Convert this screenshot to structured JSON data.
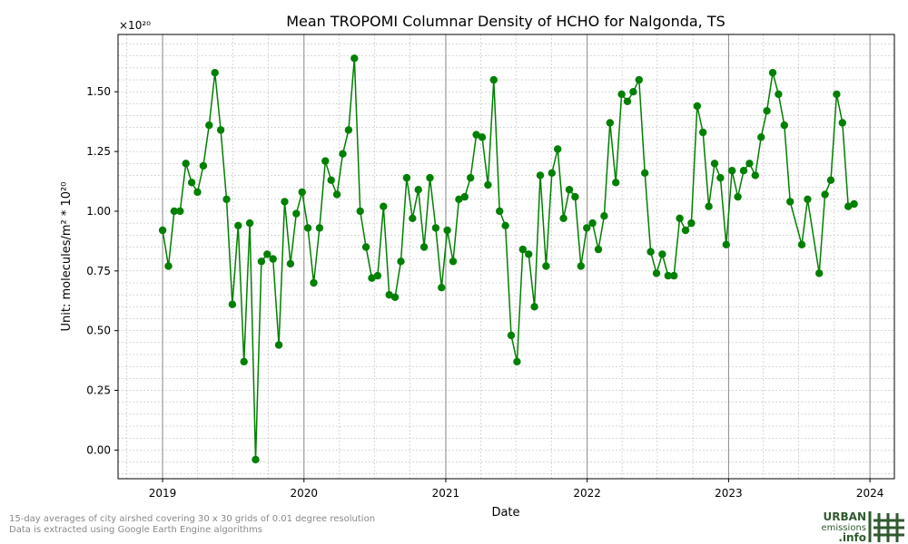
{
  "chart_data": {
    "type": "line",
    "title": "Mean TROPOMI Columnar Density of HCHO for Nalgonda, TS",
    "xlabel": "Date",
    "ylabel": "Unit: molecules/m² * 10²⁰",
    "y_multiplier_label": "×10²⁰",
    "xlim": [
      "2018-09-08",
      "2024-03-04"
    ],
    "ylim": [
      -0.12,
      1.74
    ],
    "x_ticks": [
      "2019",
      "2020",
      "2021",
      "2022",
      "2023",
      "2024"
    ],
    "y_ticks": [
      "0.00",
      "0.25",
      "0.50",
      "0.75",
      "1.00",
      "1.25",
      "1.50"
    ],
    "grid": true,
    "marker": "circle",
    "line_color": "#008000",
    "points": [
      [
        "2019-01-01",
        0.92
      ],
      [
        "2019-01-16",
        0.77
      ],
      [
        "2019-01-31",
        1.0
      ],
      [
        "2019-02-15",
        1.0
      ],
      [
        "2019-03-02",
        1.2
      ],
      [
        "2019-03-17",
        1.12
      ],
      [
        "2019-04-01",
        1.08
      ],
      [
        "2019-04-16",
        1.19
      ],
      [
        "2019-05-01",
        1.36
      ],
      [
        "2019-05-16",
        1.58
      ],
      [
        "2019-05-31",
        1.34
      ],
      [
        "2019-06-15",
        1.05
      ],
      [
        "2019-06-30",
        0.61
      ],
      [
        "2019-07-15",
        0.94
      ],
      [
        "2019-07-30",
        0.37
      ],
      [
        "2019-08-14",
        0.95
      ],
      [
        "2019-08-29",
        -0.04
      ],
      [
        "2019-09-13",
        0.79
      ],
      [
        "2019-09-28",
        0.82
      ],
      [
        "2019-10-13",
        0.8
      ],
      [
        "2019-10-28",
        0.44
      ],
      [
        "2019-11-12",
        1.04
      ],
      [
        "2019-11-27",
        0.78
      ],
      [
        "2019-12-12",
        0.99
      ],
      [
        "2019-12-27",
        1.08
      ],
      [
        "2020-01-11",
        0.93
      ],
      [
        "2020-01-26",
        0.7
      ],
      [
        "2020-02-10",
        0.93
      ],
      [
        "2020-02-25",
        1.21
      ],
      [
        "2020-03-11",
        1.13
      ],
      [
        "2020-03-26",
        1.07
      ],
      [
        "2020-04-10",
        1.24
      ],
      [
        "2020-04-25",
        1.34
      ],
      [
        "2020-05-10",
        1.64
      ],
      [
        "2020-05-25",
        1.0
      ],
      [
        "2020-06-09",
        0.85
      ],
      [
        "2020-06-24",
        0.72
      ],
      [
        "2020-07-09",
        0.73
      ],
      [
        "2020-07-24",
        1.02
      ],
      [
        "2020-08-08",
        0.65
      ],
      [
        "2020-08-23",
        0.64
      ],
      [
        "2020-09-07",
        0.79
      ],
      [
        "2020-09-22",
        1.14
      ],
      [
        "2020-10-07",
        0.97
      ],
      [
        "2020-10-22",
        1.09
      ],
      [
        "2020-11-06",
        0.85
      ],
      [
        "2020-11-21",
        1.14
      ],
      [
        "2020-12-06",
        0.93
      ],
      [
        "2020-12-21",
        0.68
      ],
      [
        "2021-01-05",
        0.92
      ],
      [
        "2021-01-20",
        0.79
      ],
      [
        "2021-02-04",
        1.05
      ],
      [
        "2021-02-19",
        1.06
      ],
      [
        "2021-03-06",
        1.14
      ],
      [
        "2021-03-21",
        1.32
      ],
      [
        "2021-04-05",
        1.31
      ],
      [
        "2021-04-20",
        1.11
      ],
      [
        "2021-05-05",
        1.55
      ],
      [
        "2021-05-20",
        1.0
      ],
      [
        "2021-06-04",
        0.94
      ],
      [
        "2021-06-19",
        0.48
      ],
      [
        "2021-07-04",
        0.37
      ],
      [
        "2021-07-19",
        0.84
      ],
      [
        "2021-08-03",
        0.82
      ],
      [
        "2021-08-18",
        0.6
      ],
      [
        "2021-09-02",
        1.15
      ],
      [
        "2021-09-17",
        0.77
      ],
      [
        "2021-10-02",
        1.16
      ],
      [
        "2021-10-17",
        1.26
      ],
      [
        "2021-11-01",
        0.97
      ],
      [
        "2021-11-16",
        1.09
      ],
      [
        "2021-12-01",
        1.06
      ],
      [
        "2021-12-16",
        0.77
      ],
      [
        "2021-12-31",
        0.93
      ],
      [
        "2022-01-15",
        0.95
      ],
      [
        "2022-01-30",
        0.84
      ],
      [
        "2022-02-14",
        0.98
      ],
      [
        "2022-03-01",
        1.37
      ],
      [
        "2022-03-16",
        1.12
      ],
      [
        "2022-03-31",
        1.49
      ],
      [
        "2022-04-15",
        1.46
      ],
      [
        "2022-04-30",
        1.5
      ],
      [
        "2022-05-15",
        1.55
      ],
      [
        "2022-05-30",
        1.16
      ],
      [
        "2022-06-14",
        0.83
      ],
      [
        "2022-06-29",
        0.74
      ],
      [
        "2022-07-14",
        0.82
      ],
      [
        "2022-07-29",
        0.73
      ],
      [
        "2022-08-13",
        0.73
      ],
      [
        "2022-08-28",
        0.97
      ],
      [
        "2022-09-12",
        0.92
      ],
      [
        "2022-09-27",
        0.95
      ],
      [
        "2022-10-12",
        1.44
      ],
      [
        "2022-10-27",
        1.33
      ],
      [
        "2022-11-11",
        1.02
      ],
      [
        "2022-11-26",
        1.2
      ],
      [
        "2022-12-11",
        1.14
      ],
      [
        "2022-12-26",
        0.86
      ],
      [
        "2023-01-10",
        1.17
      ],
      [
        "2023-01-25",
        1.06
      ],
      [
        "2023-02-09",
        1.17
      ],
      [
        "2023-02-24",
        1.2
      ],
      [
        "2023-03-11",
        1.15
      ],
      [
        "2023-03-26",
        1.31
      ],
      [
        "2023-04-10",
        1.42
      ],
      [
        "2023-04-25",
        1.58
      ],
      [
        "2023-05-10",
        1.49
      ],
      [
        "2023-05-25",
        1.36
      ],
      [
        "2023-06-09",
        1.04
      ],
      [
        "2023-07-09",
        0.86
      ],
      [
        "2023-07-24",
        1.05
      ],
      [
        "2023-08-23",
        0.74
      ],
      [
        "2023-09-07",
        1.07
      ],
      [
        "2023-09-22",
        1.13
      ],
      [
        "2023-10-07",
        1.49
      ],
      [
        "2023-10-22",
        1.37
      ],
      [
        "2023-11-06",
        1.02
      ],
      [
        "2023-11-21",
        1.03
      ]
    ]
  },
  "footnote": {
    "line1": "15-day averages of city airshed covering 30 x 30 grids of 0.01 degree resolution",
    "line2": "Data is extracted using Google Earth Engine algorithms"
  },
  "logo": {
    "line1": "URBAN",
    "line2": "emissions",
    "line3": ".info",
    "color": "#2f5a2f"
  }
}
